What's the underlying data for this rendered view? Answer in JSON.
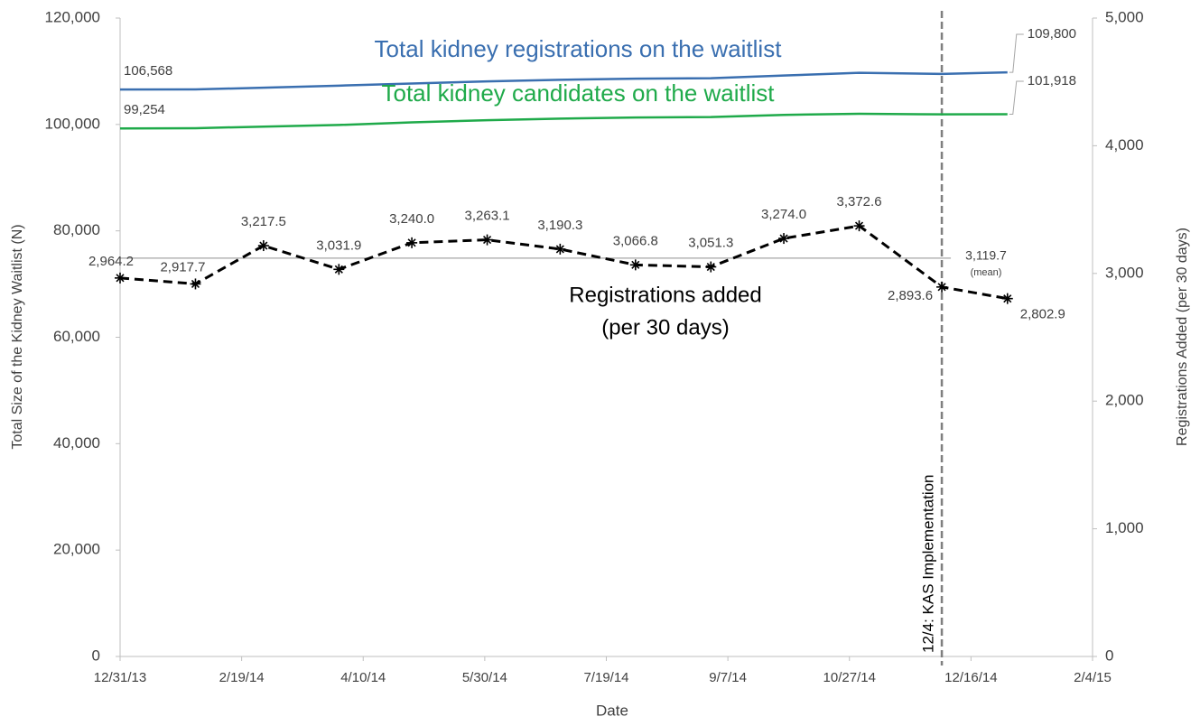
{
  "chart_data": {
    "type": "line",
    "x_label": "Date",
    "y_label": "Total Size of the Kidney Waitlist (N)",
    "y2_label": "Registrations Added (per 30 days)",
    "x": [
      "2013-12-31",
      "2014-01-31",
      "2014-02-28",
      "2014-03-31",
      "2014-04-30",
      "2014-05-31",
      "2014-06-30",
      "2014-07-31",
      "2014-08-31",
      "2014-09-30",
      "2014-10-31",
      "2014-12-04",
      "2014-12-31"
    ],
    "xlim": [
      "2013-12-31",
      "2015-02-04"
    ],
    "xticks": [
      {
        "value": "2013-12-31",
        "label": "12/31/13"
      },
      {
        "value": "2014-02-19",
        "label": "2/19/14"
      },
      {
        "value": "2014-04-10",
        "label": "4/10/14"
      },
      {
        "value": "2014-05-30",
        "label": "5/30/14"
      },
      {
        "value": "2014-07-19",
        "label": "7/19/14"
      },
      {
        "value": "2014-09-07",
        "label": "9/7/14"
      },
      {
        "value": "2014-10-27",
        "label": "10/27/14"
      },
      {
        "value": "2014-12-16",
        "label": "12/16/14"
      },
      {
        "value": "2015-02-04",
        "label": "2/4/15"
      }
    ],
    "ylim": [
      0,
      120000
    ],
    "yticks": [
      0,
      {
        "value": 20000,
        "label": "20,000"
      },
      {
        "value": 40000,
        "label": "40,000"
      },
      {
        "value": 60000,
        "label": "60,000"
      },
      {
        "value": 80000,
        "label": "80,000"
      },
      {
        "value": 100000,
        "label": "100,000"
      },
      {
        "value": 120000,
        "label": "120,000"
      }
    ],
    "y2lim": [
      0,
      5000
    ],
    "y2ticks": [
      0,
      {
        "value": 1000,
        "label": "1,000"
      },
      {
        "value": 2000,
        "label": "2,000"
      },
      {
        "value": 3000,
        "label": "3,000"
      },
      {
        "value": 4000,
        "label": "4,000"
      },
      {
        "value": 5000,
        "label": "5,000"
      }
    ],
    "series": [
      {
        "name": "Total kidney registrations on the waitlist",
        "color": "#3a6fb0",
        "values": [
          106568,
          106600,
          106900,
          107300,
          107700,
          108100,
          108400,
          108600,
          108700,
          109200,
          109700,
          109500,
          109800
        ],
        "value_labels": [
          "106,568",
          null,
          null,
          null,
          null,
          null,
          null,
          null,
          null,
          null,
          null,
          null,
          "109,800"
        ]
      },
      {
        "name": "Total kidney candidates on the waitlist",
        "color": "#1faa4a",
        "values": [
          99254,
          99300,
          99600,
          99900,
          100400,
          100800,
          101100,
          101300,
          101400,
          101800,
          102000,
          101900,
          101918
        ],
        "value_labels": [
          "99,254",
          null,
          null,
          null,
          null,
          null,
          null,
          null,
          null,
          null,
          null,
          null,
          "101,918"
        ]
      },
      {
        "name": [
          "Registrations added",
          "(per 30 days)"
        ],
        "color": "#000000",
        "axis": "y2",
        "values": [
          2964.2,
          2917.7,
          3217.5,
          3031.9,
          3240.0,
          3263.1,
          3190.3,
          3066.8,
          3051.3,
          3274.0,
          3372.6,
          2893.6,
          2802.9
        ],
        "value_labels": [
          "2,964.2",
          "2,917.7",
          "3,217.5",
          "3,031.9",
          "3,240.0",
          "3,263.1",
          "3,190.3",
          "3,066.8",
          "3,051.3",
          "3,274.0",
          "3,372.6",
          "2,893.6",
          "2,802.9"
        ]
      }
    ],
    "mean_line": {
      "value": 3119.7,
      "label": "3,119.7",
      "caption": "(mean)",
      "axis": "y2",
      "color": "#a6a6a6"
    },
    "event_line": {
      "x": "2014-12-04",
      "label": "12/4: KAS Implementation",
      "color": "#7f7f7f"
    }
  }
}
